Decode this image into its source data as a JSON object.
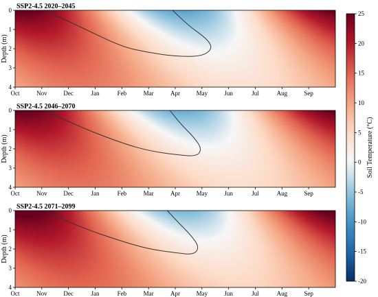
{
  "chart_data": {
    "type": "heatmap",
    "colorbar": {
      "label": "Soil Temperature (°C)",
      "range": [
        -20,
        25
      ],
      "ticks": [
        -20,
        -15,
        -10,
        -5,
        0,
        5,
        10,
        15,
        20,
        25
      ],
      "colors": {
        "low": "#053061",
        "mid_low": "#4393c3",
        "zero": "#f7f7f7",
        "mid_high": "#f4a582",
        "high": "#67001f"
      }
    },
    "panels": [
      {
        "title": "SSP2-4.5  2020–2045",
        "ylabel": "Depth (m)",
        "yticks": [
          0,
          1,
          2,
          3,
          4
        ],
        "ylim": [
          0,
          4
        ],
        "xticks": [
          "Oct",
          "Nov",
          "Dec",
          "Jan",
          "Feb",
          "Mar",
          "Apr",
          "May",
          "Jun",
          "Jul",
          "Aug",
          "Sep"
        ],
        "min_temp": -12,
        "max_temp": 22,
        "zero_contour": [
          [
            1.1,
            0
          ],
          [
            2.5,
            0.9
          ],
          [
            4.0,
            1.9
          ],
          [
            5.0,
            2.2
          ],
          [
            6.0,
            2.4
          ],
          [
            7.0,
            2.4
          ],
          [
            7.4,
            2.0
          ],
          [
            7.2,
            1.5
          ],
          [
            6.5,
            0.8
          ],
          [
            5.9,
            0
          ]
        ]
      },
      {
        "title": "SSP2-4.5  2046–2070",
        "ylabel": "Depth (m)",
        "yticks": [
          0,
          1,
          2,
          3,
          4
        ],
        "ylim": [
          0,
          4
        ],
        "xticks": [
          "Oct",
          "Nov",
          "Dec",
          "Jan",
          "Feb",
          "Mar",
          "Apr",
          "May",
          "Jun",
          "Jul",
          "Aug",
          "Sep"
        ],
        "min_temp": -11,
        "max_temp": 22,
        "zero_contour": [
          [
            1.1,
            0
          ],
          [
            2.5,
            0.9
          ],
          [
            4.0,
            1.7
          ],
          [
            5.0,
            2.1
          ],
          [
            6.0,
            2.3
          ],
          [
            6.8,
            2.4
          ],
          [
            7.0,
            2.0
          ],
          [
            6.7,
            1.4
          ],
          [
            6.2,
            0.7
          ],
          [
            5.8,
            0
          ]
        ]
      },
      {
        "title": "SSP2-4.5  2071–2099",
        "ylabel": "Depth (m)",
        "yticks": [
          0,
          1,
          2,
          3,
          4
        ],
        "ylim": [
          0,
          4
        ],
        "xticks": [
          "Oct",
          "Nov",
          "Dec",
          "Jan",
          "Feb",
          "Mar",
          "Apr",
          "May",
          "Jun",
          "Jul",
          "Aug",
          "Sep"
        ],
        "min_temp": -10,
        "max_temp": 23,
        "zero_contour": [
          [
            1.1,
            0
          ],
          [
            2.5,
            0.9
          ],
          [
            4.0,
            1.6
          ],
          [
            5.0,
            2.0
          ],
          [
            6.0,
            2.2
          ],
          [
            6.7,
            2.3
          ],
          [
            6.9,
            1.9
          ],
          [
            6.6,
            1.3
          ],
          [
            6.1,
            0.6
          ],
          [
            5.7,
            0
          ]
        ]
      }
    ]
  }
}
